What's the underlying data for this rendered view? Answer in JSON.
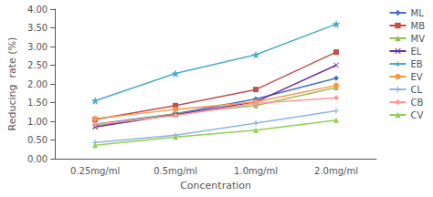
{
  "chart_data": {
    "type": "line",
    "xlabel": "Concentration",
    "ylabel": "Reducing  rate (%)",
    "categories": [
      "0.25mg/ml",
      "0.5mg/ml",
      "1.0mg/ml",
      "2.0mg/ml"
    ],
    "series": [
      {
        "name": "ML",
        "color": "#4472C4",
        "marker": "diamond",
        "values": [
          0.92,
          1.2,
          1.6,
          2.15
        ]
      },
      {
        "name": "MB",
        "color": "#C0504D",
        "marker": "square",
        "values": [
          1.05,
          1.42,
          1.85,
          2.85
        ]
      },
      {
        "name": "MV",
        "color": "#9BBB59",
        "marker": "triangle",
        "values": [
          0.88,
          1.2,
          1.42,
          1.9
        ]
      },
      {
        "name": "EL",
        "color": "#7030A0",
        "marker": "x",
        "values": [
          0.85,
          1.18,
          1.52,
          2.5
        ]
      },
      {
        "name": "EB",
        "color": "#4BACC6",
        "marker": "star",
        "values": [
          1.55,
          2.28,
          2.78,
          3.6
        ]
      },
      {
        "name": "EV",
        "color": "#F79646",
        "marker": "circle",
        "values": [
          1.07,
          1.32,
          1.52,
          1.96
        ]
      },
      {
        "name": "CL",
        "color": "#8DB4E2",
        "marker": "plus",
        "values": [
          0.43,
          0.63,
          0.95,
          1.28
        ]
      },
      {
        "name": "CB",
        "color": "#FF9999",
        "marker": "diamond",
        "values": [
          0.92,
          1.15,
          1.48,
          1.63
        ]
      },
      {
        "name": "CV",
        "color": "#92D050",
        "marker": "triangle",
        "values": [
          0.36,
          0.58,
          0.76,
          1.03
        ]
      }
    ],
    "ylim": [
      0.0,
      4.0
    ],
    "yticks": [
      {
        "value": 0,
        "label": "0.00"
      },
      {
        "value": 0.5,
        "label": "0.50"
      },
      {
        "value": 1,
        "label": "1.00"
      },
      {
        "value": 1.5,
        "label": "1.50"
      },
      {
        "value": 2,
        "label": "2.00"
      },
      {
        "value": 2.5,
        "label": "2.50"
      },
      {
        "value": 3,
        "label": "3.00"
      },
      {
        "value": 3.5,
        "label": "3.50"
      },
      {
        "value": 4,
        "label": "4.00"
      }
    ],
    "grid": false,
    "legend": "right"
  }
}
